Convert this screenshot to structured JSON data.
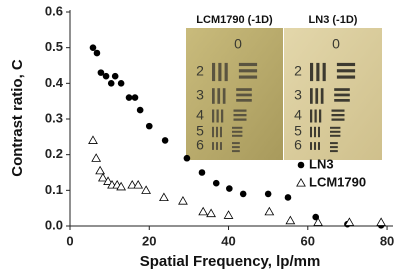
{
  "chart_data": {
    "type": "scatter",
    "x_label": "Spatial Frequency, lp/mm",
    "y_label": "Contrast ratio, C",
    "xlim": [
      0,
      81.5
    ],
    "ylim": [
      0,
      0.6
    ],
    "xticks": [
      0,
      20,
      40,
      60,
      80
    ],
    "yticks": [
      {
        "value": 0,
        "label": "0.0"
      },
      0.1,
      0.2,
      0.3,
      0.4,
      0.5,
      0.6
    ],
    "legend": "right",
    "series": [
      {
        "name": "LN3",
        "marker": "circle",
        "color": "#000000",
        "x": [
          5.8,
          6.8,
          7.8,
          9.1,
          10.4,
          11.4,
          12.9,
          14.9,
          16.4,
          17.7,
          20,
          24,
          29.5,
          33.3,
          36.9,
          40.2,
          43.7,
          50,
          55,
          62,
          70,
          78.5
        ],
        "values": [
          0.5,
          0.485,
          0.43,
          0.42,
          0.4,
          0.42,
          0.4,
          0.36,
          0.36,
          0.325,
          0.28,
          0.24,
          0.19,
          0.15,
          0.12,
          0.105,
          0.09,
          0.09,
          0.08,
          0.025,
          0.005,
          0.002
        ]
      },
      {
        "name": "LCM1790",
        "marker": "triangle",
        "color": "#000000",
        "x": [
          5.8,
          6.6,
          7.6,
          8.3,
          9.6,
          10.6,
          11.9,
          12.9,
          15.7,
          17.2,
          19.2,
          23.7,
          28.5,
          33.6,
          35.6,
          40,
          50.3,
          55.6,
          62.6,
          70.5,
          78.5
        ],
        "values": [
          0.24,
          0.19,
          0.155,
          0.135,
          0.125,
          0.115,
          0.115,
          0.11,
          0.115,
          0.115,
          0.1,
          0.08,
          0.07,
          0.04,
          0.035,
          0.03,
          0.04,
          0.015,
          0.01,
          0.01,
          0.01
        ]
      }
    ],
    "insets": [
      {
        "label": "LCM1790 (-1D)",
        "digits": [
          "0",
          "2",
          "3",
          "4",
          "5",
          "6"
        ]
      },
      {
        "label": "LN3 (-1D)",
        "digits": [
          "0",
          "2",
          "3",
          "4",
          "5",
          "6"
        ]
      }
    ]
  }
}
